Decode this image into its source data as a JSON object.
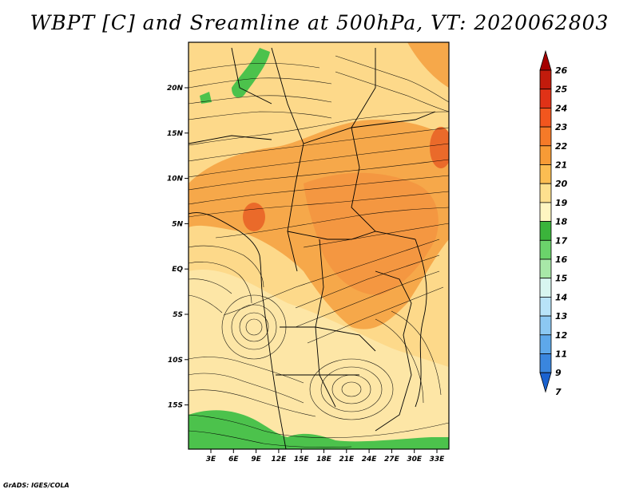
{
  "title": "WBPT [C] and Sreamline at 500hPa, VT: 2020062803",
  "credit": "GrADS: IGES/COLA",
  "map": {
    "lon_labels": [
      "3E",
      "6E",
      "9E",
      "12E",
      "15E",
      "18E",
      "21E",
      "24E",
      "27E",
      "30E",
      "33E"
    ],
    "lat_labels": [
      "20N",
      "15N",
      "10N",
      "5N",
      "EQ",
      "5S",
      "10S",
      "15S"
    ],
    "dominant_colors": {
      "background_field": "#fdd98a",
      "warm_band": "#f6a84a",
      "hot_spot": "#ea6a2a",
      "green_low": "#4cc24c",
      "coastline": "#000000"
    }
  },
  "colorbar": {
    "labels": [
      "26",
      "25",
      "24",
      "23",
      "22",
      "21",
      "20",
      "19",
      "18",
      "17",
      "16",
      "15",
      "14",
      "13",
      "12",
      "11",
      "9",
      "7"
    ],
    "colors": [
      "#a50000",
      "#c21b0c",
      "#e03217",
      "#f2561e",
      "#f57a28",
      "#f79b36",
      "#fbbd52",
      "#fde08e",
      "#fff6c1",
      "#3bb43b",
      "#6bd36b",
      "#a8e8a8",
      "#d8f6f0",
      "#b8e3f8",
      "#8cc8f2",
      "#5ea8ea",
      "#3a86de",
      "#1a62d0"
    ]
  }
}
